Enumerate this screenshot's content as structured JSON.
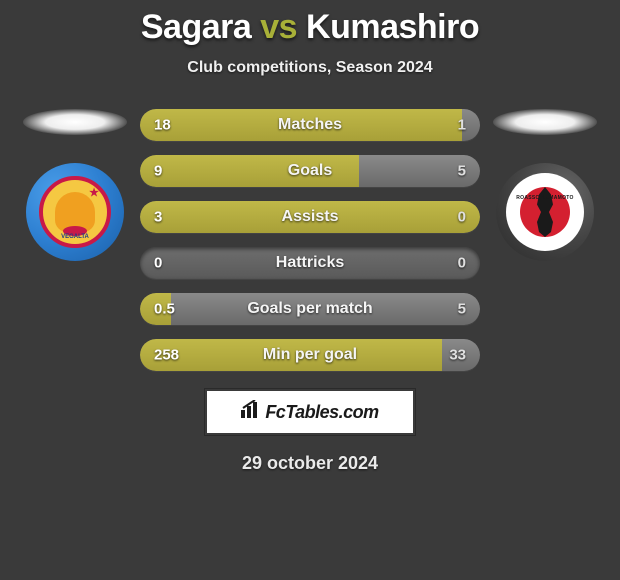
{
  "title": {
    "player1": "Sagara",
    "vs": "vs",
    "player2": "Kumashiro",
    "vs_color": "#a8b038"
  },
  "subtitle": "Club competitions, Season 2024",
  "date": "29 october 2024",
  "logo_text": "FcTables.com",
  "colors": {
    "background": "#3a3a3a",
    "bar_fill_left": "#a8a038",
    "bar_fill_left_light": "#c0b848",
    "bar_fill_right": "#7a7a7a",
    "bar_track": "#6e6e6e"
  },
  "stats": [
    {
      "label": "Matches",
      "left_val": "18",
      "right_val": "1",
      "left_pct": 94.7,
      "right_pct": 5.3
    },
    {
      "label": "Goals",
      "left_val": "9",
      "right_val": "5",
      "left_pct": 64.3,
      "right_pct": 35.7
    },
    {
      "label": "Assists",
      "left_val": "3",
      "right_val": "0",
      "left_pct": 100,
      "right_pct": 0
    },
    {
      "label": "Hattricks",
      "left_val": "0",
      "right_val": "0",
      "left_pct": 0,
      "right_pct": 0
    },
    {
      "label": "Goals per match",
      "left_val": "0.5",
      "right_val": "5",
      "left_pct": 9.1,
      "right_pct": 90.9
    },
    {
      "label": "Min per goal",
      "left_val": "258",
      "right_val": "33",
      "left_pct": 88.7,
      "right_pct": 11.3
    }
  ],
  "crests": {
    "left_label": "VEGALTA",
    "right_label": "ROASSO KUMAMOTO"
  }
}
